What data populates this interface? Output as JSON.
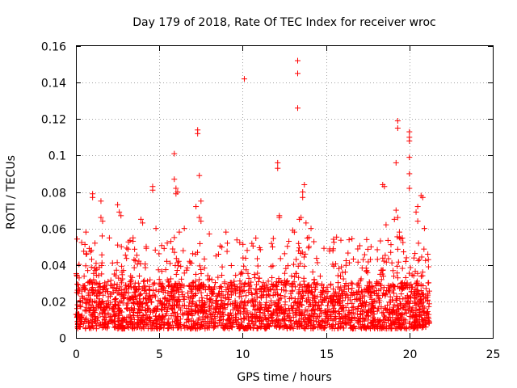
{
  "chart_data": {
    "type": "scatter",
    "title": "Day 179 of 2018, Rate Of TEC Index for receiver wroc",
    "xlabel": "GPS time / hours",
    "ylabel": "ROTI / TECUs",
    "xlim": [
      0,
      25
    ],
    "ylim": [
      0,
      0.16
    ],
    "grid": true,
    "marker": "plus",
    "marker_color": "#ff0000",
    "x_ticks": [
      {
        "value": 0,
        "label": "0"
      },
      {
        "value": 5,
        "label": "5"
      },
      {
        "value": 10,
        "label": "10"
      },
      {
        "value": 15,
        "label": "15"
      },
      {
        "value": 20,
        "label": "20"
      },
      {
        "value": 25,
        "label": "25"
      }
    ],
    "y_ticks": [
      {
        "value": 0,
        "label": "0"
      },
      {
        "value": 0.02,
        "label": "0.02"
      },
      {
        "value": 0.04,
        "label": "0.04"
      },
      {
        "value": 0.06,
        "label": "0.06"
      },
      {
        "value": 0.08,
        "label": "0.08"
      },
      {
        "value": 0.1,
        "label": "0.1"
      },
      {
        "value": 0.12,
        "label": "0.12"
      },
      {
        "value": 0.14,
        "label": "0.14"
      },
      {
        "value": 0.16,
        "label": "0.16"
      }
    ],
    "series": [
      {
        "name": "ROTI",
        "points": [
          [
            13.3,
            0.152
          ],
          [
            13.3,
            0.145
          ],
          [
            10.1,
            0.142
          ],
          [
            13.3,
            0.126
          ],
          [
            19.3,
            0.119
          ],
          [
            19.3,
            0.115
          ],
          [
            20.0,
            0.113
          ],
          [
            20.0,
            0.11
          ],
          [
            20.0,
            0.108
          ],
          [
            20.0,
            0.099
          ],
          [
            7.3,
            0.114
          ],
          [
            7.3,
            0.112
          ],
          [
            5.9,
            0.101
          ],
          [
            12.1,
            0.096
          ],
          [
            12.1,
            0.093
          ],
          [
            19.2,
            0.096
          ],
          [
            20.0,
            0.09
          ],
          [
            7.4,
            0.089
          ],
          [
            5.9,
            0.087
          ],
          [
            1.0,
            0.079
          ],
          [
            1.0,
            0.077
          ],
          [
            4.6,
            0.083
          ],
          [
            4.6,
            0.081
          ],
          [
            6.0,
            0.082
          ],
          [
            6.0,
            0.079
          ],
          [
            6.1,
            0.08
          ],
          [
            13.7,
            0.084
          ],
          [
            13.6,
            0.08
          ],
          [
            13.6,
            0.077
          ],
          [
            18.4,
            0.084
          ],
          [
            18.5,
            0.083
          ],
          [
            20.0,
            0.082
          ],
          [
            20.7,
            0.078
          ],
          [
            20.8,
            0.077
          ],
          [
            1.5,
            0.075
          ],
          [
            2.5,
            0.073
          ],
          [
            2.6,
            0.069
          ],
          [
            2.7,
            0.067
          ],
          [
            7.2,
            0.072
          ],
          [
            7.5,
            0.075
          ],
          [
            20.5,
            0.072
          ],
          [
            20.4,
            0.069
          ],
          [
            19.2,
            0.07
          ],
          [
            19.3,
            0.066
          ],
          [
            1.5,
            0.066
          ],
          [
            1.6,
            0.064
          ],
          [
            3.9,
            0.065
          ],
          [
            4.0,
            0.063
          ],
          [
            7.4,
            0.066
          ],
          [
            7.5,
            0.064
          ],
          [
            12.2,
            0.067
          ],
          [
            12.2,
            0.066
          ],
          [
            13.4,
            0.065
          ],
          [
            13.5,
            0.066
          ],
          [
            13.8,
            0.063
          ],
          [
            19.1,
            0.065
          ],
          [
            20.5,
            0.064
          ],
          [
            20.9,
            0.06
          ],
          [
            0.6,
            0.058
          ],
          [
            4.8,
            0.06
          ],
          [
            6.2,
            0.058
          ],
          [
            6.5,
            0.06
          ],
          [
            14.1,
            0.06
          ],
          [
            18.6,
            0.062
          ],
          [
            19.4,
            0.058
          ],
          [
            13.0,
            0.059
          ],
          [
            13.1,
            0.058
          ],
          [
            19.4,
            0.055
          ],
          [
            5.9,
            0.055
          ],
          [
            8.0,
            0.057
          ],
          [
            9.0,
            0.058
          ]
        ]
      }
    ],
    "dense_band": {
      "x_range": [
        0,
        21.2
      ],
      "typical_min": 0.005,
      "typical_max": 0.03,
      "occasional_max": 0.056,
      "description": "dense cloud of ROTI values, mostly 0.005-0.03 TECU/min"
    }
  }
}
